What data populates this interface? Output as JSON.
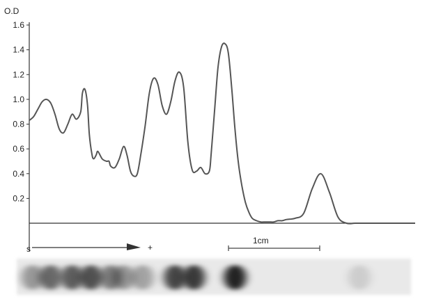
{
  "chart_data": {
    "type": "line",
    "ylabel": "O.D",
    "ylim": [
      0,
      1.6
    ],
    "yticks": [
      "0.2",
      "0.4",
      "0.6",
      "0.8",
      "1.0",
      "1.2",
      "1.4",
      "1.6"
    ],
    "x": [
      0,
      0.5,
      1.0,
      1.5,
      2.0,
      2.5,
      3.0,
      3.5,
      4.0,
      4.5,
      5.0,
      5.5,
      6.0,
      6.2,
      6.5,
      6.8,
      7.0,
      7.3,
      7.5,
      7.8,
      8.0,
      8.5,
      9.0,
      9.3,
      9.5,
      10.0,
      10.5,
      11.0,
      11.4,
      11.8,
      12.2,
      12.6,
      13.0,
      13.5,
      14.0,
      14.5,
      15.0,
      15.5,
      16.0,
      16.5,
      17.0,
      17.5,
      18.0,
      18.5,
      19.0,
      19.5,
      20.0,
      20.5,
      21.0,
      21.2,
      21.6,
      22.0,
      22.4,
      22.8,
      23.2,
      23.6,
      24.0,
      24.4,
      24.8,
      25.2,
      25.6,
      26.0,
      26.5,
      27.0,
      27.5,
      28.0,
      28.5,
      29.0,
      29.5,
      30.0,
      31.0,
      32.0,
      33.0,
      34.0,
      35.0,
      36.0,
      37.0,
      38.0,
      39.0,
      40.0,
      40.5,
      41.0,
      41.5,
      42.0,
      42.5,
      43.0,
      43.5,
      44.0,
      44.5,
      45.0
    ],
    "series": [
      {
        "values": [
          0.83,
          0.86,
          0.92,
          0.98,
          1.0,
          0.97,
          0.88,
          0.76,
          0.73,
          0.8,
          0.88,
          0.84,
          0.9,
          1.05,
          1.08,
          0.95,
          0.72,
          0.56,
          0.52,
          0.55,
          0.58,
          0.52,
          0.5,
          0.5,
          0.46,
          0.45,
          0.52,
          0.62,
          0.55,
          0.42,
          0.38,
          0.4,
          0.55,
          0.78,
          1.05,
          1.17,
          1.12,
          0.95,
          0.88,
          0.98,
          1.15,
          1.22,
          1.1,
          0.65,
          0.43,
          0.42,
          0.45,
          0.4,
          0.42,
          0.55,
          0.9,
          1.25,
          1.42,
          1.45,
          1.38,
          1.1,
          0.75,
          0.48,
          0.3,
          0.17,
          0.09,
          0.04,
          0.02,
          0.01,
          0.01,
          0.01,
          0.01,
          0.02,
          0.02,
          0.03,
          0.04,
          0.08,
          0.28,
          0.4,
          0.25,
          0.05,
          0.0,
          0.0,
          0.0,
          0.0,
          0.0,
          0.0,
          0.0,
          0.0,
          0.0,
          0.0,
          0.0,
          0.0,
          0.0,
          0.0
        ]
      }
    ],
    "annotations": {
      "start": "s",
      "direction": "+",
      "scale_bar": "1cm"
    },
    "gel_bands": [
      {
        "pos": 0.4,
        "intensity": 0.35
      },
      {
        "pos": 2.5,
        "intensity": 0.55
      },
      {
        "pos": 5.0,
        "intensity": 0.6
      },
      {
        "pos": 7.2,
        "intensity": 0.65
      },
      {
        "pos": 9.5,
        "intensity": 0.45
      },
      {
        "pos": 11.0,
        "intensity": 0.35
      },
      {
        "pos": 13.2,
        "intensity": 0.3
      },
      {
        "pos": 17.0,
        "intensity": 0.7
      },
      {
        "pos": 19.2,
        "intensity": 0.75
      },
      {
        "pos": 24.0,
        "intensity": 0.85
      },
      {
        "pos": 38.5,
        "intensity": 0.12
      }
    ]
  }
}
